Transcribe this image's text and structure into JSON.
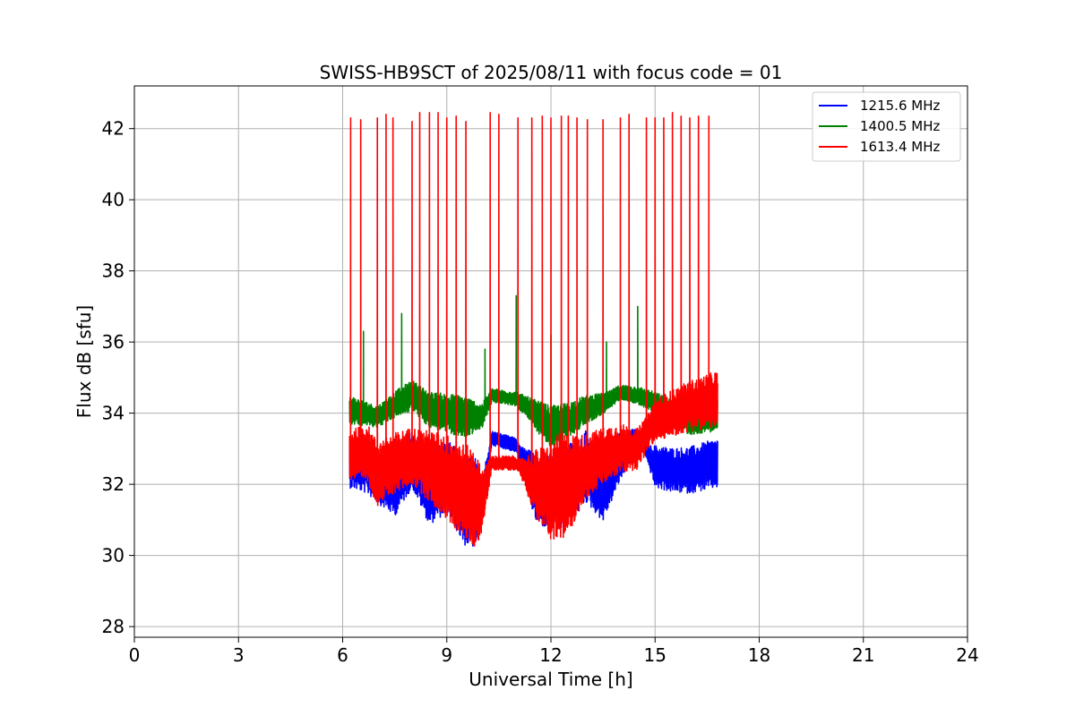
{
  "chart_data": {
    "type": "line",
    "title": "SWISS-HB9SCT of 2025/08/11 with focus code = 01",
    "xlabel": "Universal Time [h]",
    "ylabel": "Flux dB [sfu]",
    "xlim": [
      0,
      24
    ],
    "ylim": [
      27.7,
      43.2
    ],
    "xticks": [
      0,
      3,
      6,
      9,
      12,
      15,
      18,
      21,
      24
    ],
    "yticks": [
      28,
      30,
      32,
      34,
      36,
      38,
      40,
      42
    ],
    "grid": true,
    "legend_position": "top-right",
    "series": [
      {
        "name": "1215.6 MHz",
        "color": "#0000ff",
        "base": [
          [
            6.2,
            32.6
          ],
          [
            6.7,
            32.5
          ],
          [
            7.1,
            32.2
          ],
          [
            7.5,
            31.9
          ],
          [
            8.0,
            32.7
          ],
          [
            8.5,
            31.8
          ],
          [
            9.0,
            32.3
          ],
          [
            9.5,
            31.5
          ],
          [
            10.0,
            31.5
          ],
          [
            10.3,
            33.3
          ],
          [
            11.0,
            33.1
          ],
          [
            11.6,
            31.8
          ],
          [
            12.0,
            31.8
          ],
          [
            12.5,
            32.0
          ],
          [
            13.0,
            32.5
          ],
          [
            13.5,
            31.8
          ],
          [
            14.0,
            32.8
          ],
          [
            14.5,
            33.3
          ],
          [
            15.0,
            32.5
          ],
          [
            15.5,
            32.4
          ],
          [
            16.0,
            32.4
          ],
          [
            16.8,
            32.6
          ]
        ],
        "amplitude": [
          [
            6.2,
            0.7
          ],
          [
            7.0,
            0.8
          ],
          [
            8.0,
            0.8
          ],
          [
            9.0,
            1.1
          ],
          [
            9.8,
            1.3
          ],
          [
            10.2,
            0.2
          ],
          [
            11.1,
            0.2
          ],
          [
            11.5,
            0.9
          ],
          [
            12.3,
            1.2
          ],
          [
            13.0,
            1.0
          ],
          [
            14.0,
            0.7
          ],
          [
            14.7,
            0.1
          ],
          [
            15.0,
            0.6
          ],
          [
            16.8,
            0.7
          ]
        ],
        "spikes": []
      },
      {
        "name": "1400.5 MHz",
        "color": "#008000",
        "base": [
          [
            6.2,
            34.1
          ],
          [
            7.0,
            33.9
          ],
          [
            7.6,
            34.3
          ],
          [
            8.0,
            34.5
          ],
          [
            8.5,
            34.1
          ],
          [
            9.0,
            34.0
          ],
          [
            9.5,
            33.9
          ],
          [
            10.0,
            33.9
          ],
          [
            10.3,
            34.5
          ],
          [
            11.0,
            34.4
          ],
          [
            11.5,
            34.0
          ],
          [
            12.0,
            33.6
          ],
          [
            12.5,
            33.8
          ],
          [
            13.0,
            34.1
          ],
          [
            13.6,
            34.3
          ],
          [
            14.0,
            34.6
          ],
          [
            14.5,
            34.5
          ],
          [
            15.0,
            34.3
          ],
          [
            15.5,
            34.0
          ],
          [
            16.0,
            33.8
          ],
          [
            16.8,
            34.0
          ]
        ],
        "amplitude": [
          [
            6.2,
            0.4
          ],
          [
            7.0,
            0.3
          ],
          [
            8.5,
            0.5
          ],
          [
            9.5,
            0.6
          ],
          [
            10.3,
            0.2
          ],
          [
            11.0,
            0.2
          ],
          [
            12.0,
            0.6
          ],
          [
            13.0,
            0.4
          ],
          [
            14.0,
            0.2
          ],
          [
            15.0,
            0.3
          ],
          [
            16.8,
            0.5
          ]
        ],
        "spikes": [
          [
            6.6,
            36.3
          ],
          [
            7.7,
            36.8
          ],
          [
            10.1,
            35.8
          ],
          [
            11.0,
            37.3
          ],
          [
            12.0,
            36.2
          ],
          [
            13.6,
            36.0
          ],
          [
            14.5,
            37.0
          ]
        ]
      },
      {
        "name": "1613.4 MHz",
        "color": "#ff0000",
        "base": [
          [
            6.2,
            32.8
          ],
          [
            6.7,
            32.9
          ],
          [
            7.0,
            32.3
          ],
          [
            7.5,
            32.6
          ],
          [
            8.0,
            32.8
          ],
          [
            8.5,
            32.5
          ],
          [
            9.0,
            32.2
          ],
          [
            9.5,
            31.8
          ],
          [
            10.0,
            31.5
          ],
          [
            10.3,
            32.6
          ],
          [
            11.0,
            32.6
          ],
          [
            11.6,
            32.0
          ],
          [
            12.0,
            31.8
          ],
          [
            12.5,
            32.0
          ],
          [
            13.0,
            32.5
          ],
          [
            13.5,
            32.8
          ],
          [
            14.0,
            33.0
          ],
          [
            14.5,
            33.0
          ],
          [
            15.0,
            33.8
          ],
          [
            15.5,
            34.0
          ],
          [
            16.0,
            34.2
          ],
          [
            16.8,
            34.4
          ]
        ],
        "amplitude": [
          [
            6.2,
            0.7
          ],
          [
            7.0,
            0.9
          ],
          [
            8.0,
            0.8
          ],
          [
            9.0,
            1.2
          ],
          [
            9.8,
            1.4
          ],
          [
            10.3,
            0.2
          ],
          [
            11.1,
            0.2
          ],
          [
            11.6,
            1.0
          ],
          [
            12.3,
            1.6
          ],
          [
            13.0,
            0.9
          ],
          [
            14.0,
            0.7
          ],
          [
            14.8,
            0.5
          ],
          [
            15.0,
            0.6
          ],
          [
            16.8,
            0.8
          ]
        ],
        "spikes": [
          [
            6.23,
            42.3
          ],
          [
            6.52,
            42.25
          ],
          [
            7.0,
            42.3
          ],
          [
            7.25,
            42.4
          ],
          [
            7.45,
            42.3
          ],
          [
            8.0,
            42.2
          ],
          [
            8.22,
            42.45
          ],
          [
            8.5,
            42.45
          ],
          [
            8.75,
            42.45
          ],
          [
            9.0,
            42.3
          ],
          [
            9.27,
            42.35
          ],
          [
            9.55,
            42.2
          ],
          [
            10.25,
            42.45
          ],
          [
            10.5,
            42.4
          ],
          [
            11.05,
            42.3
          ],
          [
            11.45,
            42.3
          ],
          [
            11.75,
            42.35
          ],
          [
            12.0,
            42.3
          ],
          [
            12.3,
            42.35
          ],
          [
            12.5,
            42.35
          ],
          [
            12.75,
            42.3
          ],
          [
            13.05,
            42.25
          ],
          [
            13.5,
            42.25
          ],
          [
            14.0,
            42.3
          ],
          [
            14.25,
            42.4
          ],
          [
            14.75,
            42.3
          ],
          [
            15.0,
            42.3
          ],
          [
            15.25,
            42.3
          ],
          [
            15.5,
            42.45
          ],
          [
            15.75,
            42.35
          ],
          [
            16.0,
            42.3
          ],
          [
            16.25,
            42.35
          ],
          [
            16.55,
            42.35
          ]
        ]
      }
    ]
  }
}
